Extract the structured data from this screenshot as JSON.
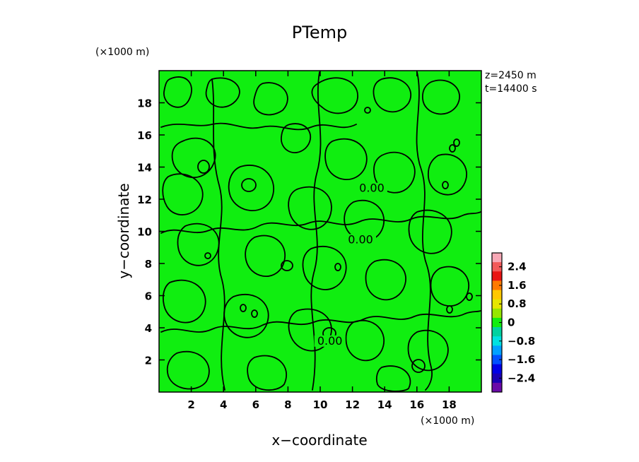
{
  "chart_data": {
    "type": "heatmap",
    "title": "PTemp",
    "xlabel": "x−coordinate",
    "ylabel": "y−coordinate",
    "x_unit": "(×1000 m)",
    "y_unit": "(×1000 m)",
    "xlim": [
      0,
      20
    ],
    "ylim": [
      0,
      20
    ],
    "x_ticks": [
      2,
      4,
      6,
      8,
      10,
      12,
      14,
      16,
      18
    ],
    "y_ticks": [
      2,
      4,
      6,
      8,
      10,
      12,
      14,
      16,
      18
    ],
    "annotations": [
      "z=2450 m",
      "t=14400 s"
    ],
    "field_value": 0,
    "field_color": "#10ee10",
    "contour_level": 0,
    "contour_labels": [
      {
        "text": "0.00",
        "x": 13.2,
        "y": 12.5
      },
      {
        "text": "0.00",
        "x": 12.5,
        "y": 9.3
      },
      {
        "text": "0.00",
        "x": 10.6,
        "y": 3.0
      }
    ],
    "colorbar": {
      "ticks": [
        {
          "label": "2.4",
          "value": 2.4
        },
        {
          "label": "1.6",
          "value": 1.6
        },
        {
          "label": "0.8",
          "value": 0.8
        },
        {
          "label": "0",
          "value": 0
        },
        {
          "label": "−0.8",
          "value": -0.8
        },
        {
          "label": "−1.6",
          "value": -1.6
        },
        {
          "label": "−2.4",
          "value": -2.4
        }
      ],
      "range": [
        -3.0,
        3.0
      ],
      "bands": [
        {
          "from": 2.6,
          "to": 3.0,
          "color": "#f7a8b6"
        },
        {
          "from": 2.2,
          "to": 2.6,
          "color": "#f25a5a"
        },
        {
          "from": 1.8,
          "to": 2.2,
          "color": "#e81414"
        },
        {
          "from": 1.4,
          "to": 1.8,
          "color": "#ff7a00"
        },
        {
          "from": 1.0,
          "to": 1.4,
          "color": "#ffc800"
        },
        {
          "from": 0.6,
          "to": 1.0,
          "color": "#e6e600"
        },
        {
          "from": 0.2,
          "to": 0.6,
          "color": "#96e600"
        },
        {
          "from": -0.2,
          "to": 0.2,
          "color": "#10ee10"
        },
        {
          "from": -0.6,
          "to": -0.2,
          "color": "#00d2a0"
        },
        {
          "from": -1.0,
          "to": -0.6,
          "color": "#00e1e1"
        },
        {
          "from": -1.4,
          "to": -1.0,
          "color": "#00a0ff"
        },
        {
          "from": -1.8,
          "to": -1.4,
          "color": "#0050ff"
        },
        {
          "from": -2.2,
          "to": -1.8,
          "color": "#0000e6"
        },
        {
          "from": -2.6,
          "to": -2.2,
          "color": "#1a00b4"
        },
        {
          "from": -3.0,
          "to": -2.6,
          "color": "#6a0aa8"
        }
      ]
    }
  }
}
